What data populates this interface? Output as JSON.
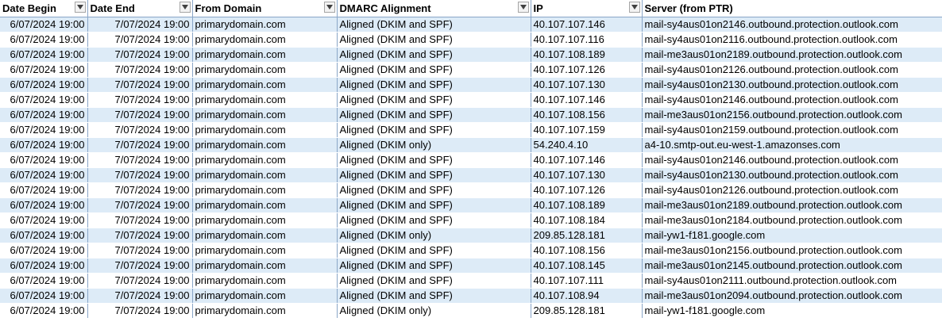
{
  "columns": [
    {
      "label": "Date Begin",
      "filter": true
    },
    {
      "label": "Date End",
      "filter": true
    },
    {
      "label": "From Domain",
      "filter": true
    },
    {
      "label": "DMARC Alignment",
      "filter": true
    },
    {
      "label": "IP",
      "filter": true
    },
    {
      "label": "Server (from PTR)",
      "filter": false
    }
  ],
  "rows": [
    [
      "6/07/2024 19:00",
      "7/07/2024 19:00",
      "primarydomain.com",
      "Aligned (DKIM and SPF)",
      "40.107.107.146",
      "mail-sy4aus01on2146.outbound.protection.outlook.com"
    ],
    [
      "6/07/2024 19:00",
      "7/07/2024 19:00",
      "primarydomain.com",
      "Aligned (DKIM and SPF)",
      "40.107.107.116",
      "mail-sy4aus01on2116.outbound.protection.outlook.com"
    ],
    [
      "6/07/2024 19:00",
      "7/07/2024 19:00",
      "primarydomain.com",
      "Aligned (DKIM and SPF)",
      "40.107.108.189",
      "mail-me3aus01on2189.outbound.protection.outlook.com"
    ],
    [
      "6/07/2024 19:00",
      "7/07/2024 19:00",
      "primarydomain.com",
      "Aligned (DKIM and SPF)",
      "40.107.107.126",
      "mail-sy4aus01on2126.outbound.protection.outlook.com"
    ],
    [
      "6/07/2024 19:00",
      "7/07/2024 19:00",
      "primarydomain.com",
      "Aligned (DKIM and SPF)",
      "40.107.107.130",
      "mail-sy4aus01on2130.outbound.protection.outlook.com"
    ],
    [
      "6/07/2024 19:00",
      "7/07/2024 19:00",
      "primarydomain.com",
      "Aligned (DKIM and SPF)",
      "40.107.107.146",
      "mail-sy4aus01on2146.outbound.protection.outlook.com"
    ],
    [
      "6/07/2024 19:00",
      "7/07/2024 19:00",
      "primarydomain.com",
      "Aligned (DKIM and SPF)",
      "40.107.108.156",
      "mail-me3aus01on2156.outbound.protection.outlook.com"
    ],
    [
      "6/07/2024 19:00",
      "7/07/2024 19:00",
      "primarydomain.com",
      "Aligned (DKIM and SPF)",
      "40.107.107.159",
      "mail-sy4aus01on2159.outbound.protection.outlook.com"
    ],
    [
      "6/07/2024 19:00",
      "7/07/2024 19:00",
      "primarydomain.com",
      "Aligned (DKIM only)",
      "54.240.4.10",
      "a4-10.smtp-out.eu-west-1.amazonses.com"
    ],
    [
      "6/07/2024 19:00",
      "7/07/2024 19:00",
      "primarydomain.com",
      "Aligned (DKIM and SPF)",
      "40.107.107.146",
      "mail-sy4aus01on2146.outbound.protection.outlook.com"
    ],
    [
      "6/07/2024 19:00",
      "7/07/2024 19:00",
      "primarydomain.com",
      "Aligned (DKIM and SPF)",
      "40.107.107.130",
      "mail-sy4aus01on2130.outbound.protection.outlook.com"
    ],
    [
      "6/07/2024 19:00",
      "7/07/2024 19:00",
      "primarydomain.com",
      "Aligned (DKIM and SPF)",
      "40.107.107.126",
      "mail-sy4aus01on2126.outbound.protection.outlook.com"
    ],
    [
      "6/07/2024 19:00",
      "7/07/2024 19:00",
      "primarydomain.com",
      "Aligned (DKIM and SPF)",
      "40.107.108.189",
      "mail-me3aus01on2189.outbound.protection.outlook.com"
    ],
    [
      "6/07/2024 19:00",
      "7/07/2024 19:00",
      "primarydomain.com",
      "Aligned (DKIM and SPF)",
      "40.107.108.184",
      "mail-me3aus01on2184.outbound.protection.outlook.com"
    ],
    [
      "6/07/2024 19:00",
      "7/07/2024 19:00",
      "primarydomain.com",
      "Aligned (DKIM only)",
      "209.85.128.181",
      "mail-yw1-f181.google.com"
    ],
    [
      "6/07/2024 19:00",
      "7/07/2024 19:00",
      "primarydomain.com",
      "Aligned (DKIM and SPF)",
      "40.107.108.156",
      "mail-me3aus01on2156.outbound.protection.outlook.com"
    ],
    [
      "6/07/2024 19:00",
      "7/07/2024 19:00",
      "primarydomain.com",
      "Aligned (DKIM and SPF)",
      "40.107.108.145",
      "mail-me3aus01on2145.outbound.protection.outlook.com"
    ],
    [
      "6/07/2024 19:00",
      "7/07/2024 19:00",
      "primarydomain.com",
      "Aligned (DKIM and SPF)",
      "40.107.107.111",
      "mail-sy4aus01on2111.outbound.protection.outlook.com"
    ],
    [
      "6/07/2024 19:00",
      "7/07/2024 19:00",
      "primarydomain.com",
      "Aligned (DKIM and SPF)",
      "40.107.108.94",
      "mail-me3aus01on2094.outbound.protection.outlook.com"
    ],
    [
      "6/07/2024 19:00",
      "7/07/2024 19:00",
      "primarydomain.com",
      "Aligned (DKIM only)",
      "209.85.128.181",
      "mail-yw1-f181.google.com"
    ]
  ]
}
